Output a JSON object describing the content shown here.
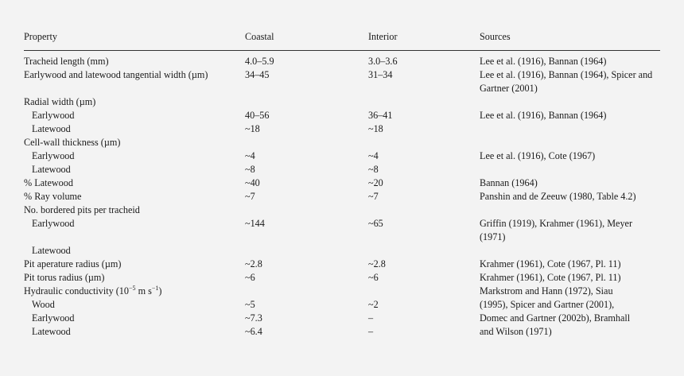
{
  "table": {
    "headers": [
      "Property",
      "Coastal",
      "Interior",
      "Sources"
    ],
    "rows": [
      {
        "property": "Tracheid length (mm)",
        "indent": false,
        "coastal": "4.0–5.9",
        "interior": "3.0–3.6",
        "sources": "Lee et al. (1916), Bannan (1964)"
      },
      {
        "property": "Earlywood and latewood tangential width (µm)",
        "indent": false,
        "coastal": "34–45",
        "interior": "31–34",
        "sources": "Lee et al. (1916), Bannan (1964), Spicer and Gartner (2001)"
      },
      {
        "property": "Radial width (µm)",
        "indent": false,
        "coastal": "",
        "interior": "",
        "sources": ""
      },
      {
        "property": "Earlywood",
        "indent": true,
        "coastal": "40–56",
        "interior": "36–41",
        "sources": "Lee et al. (1916), Bannan (1964)"
      },
      {
        "property": "Latewood",
        "indent": true,
        "coastal": "~18",
        "interior": " ~18",
        "sources": ""
      },
      {
        "property": "Cell-wall thickness (µm)",
        "indent": false,
        "coastal": "",
        "interior": "",
        "sources": ""
      },
      {
        "property": "Earlywood",
        "indent": true,
        "coastal": "~4",
        "interior": "~4",
        "sources": "Lee et al. (1916), Cote (1967)"
      },
      {
        "property": "Latewood",
        "indent": true,
        "coastal": "~8",
        "interior": "~8",
        "sources": ""
      },
      {
        "property": "% Latewood",
        "indent": false,
        "coastal": "~40",
        "interior": "~20",
        "sources": "Bannan (1964)"
      },
      {
        "property": "% Ray volume",
        "indent": false,
        "coastal": "~7",
        "interior": "~7",
        "sources": "Panshin and de Zeeuw (1980, Table 4.2)"
      },
      {
        "property": "No. bordered pits per tracheid",
        "indent": false,
        "coastal": "",
        "interior": "",
        "sources": ""
      },
      {
        "property": "Earlywood",
        "indent": true,
        "coastal": "~144",
        "interior": "~65",
        "sources": "Griffin (1919), Krahmer (1961), Meyer (1971)"
      },
      {
        "property": "Latewood",
        "indent": true,
        "coastal": "",
        "interior": "",
        "sources": ""
      },
      {
        "property": "Pit aperature radius (µm)",
        "indent": false,
        "coastal": "~2.8",
        "interior": "~2.8",
        "sources": "Krahmer (1961), Cote (1967, Pl. 11)"
      },
      {
        "property": "Pit torus radius (µm)",
        "indent": false,
        "coastal": "~6",
        "interior": "~6",
        "sources": "Krahmer (1961), Cote (1967, Pl. 11)"
      },
      {
        "property": "Hydraulic conductivity (10",
        "indent": false,
        "sup1": "−5",
        "property_mid": " m s",
        "sup2": "−1",
        "property_end": ")",
        "coastal": "",
        "interior": "",
        "sources": "Markstrom and Hann (1972), Siau"
      },
      {
        "property": "Wood",
        "indent": true,
        "coastal": "~5",
        "interior": "~2",
        "sources": "(1995), Spicer and Gartner (2001),"
      },
      {
        "property": "Earlywood",
        "indent": true,
        "coastal": "~7.3",
        "interior": "–",
        "sources": "Domec and Gartner (2002b), Bramhall"
      },
      {
        "property": "Latewood",
        "indent": true,
        "coastal": "~6.4",
        "interior": "–",
        "sources": "and Wilson (1971)"
      }
    ]
  }
}
